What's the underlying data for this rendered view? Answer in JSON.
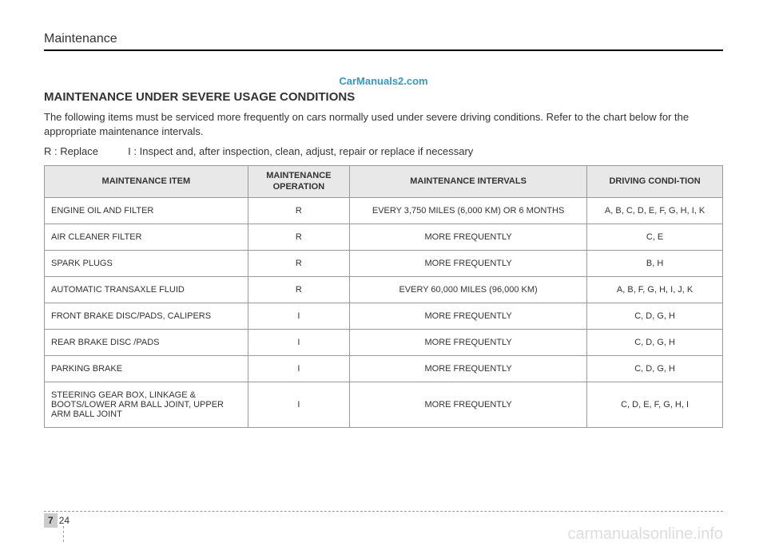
{
  "header": {
    "section": "Maintenance"
  },
  "watermark_top": "CarManuals2.com",
  "title": "MAINTENANCE UNDER SEVERE USAGE CONDITIONS",
  "intro": "The following items must be serviced more frequently on cars normally used under severe driving conditions. Refer to the chart below for the appropriate maintenance intervals.",
  "legend": {
    "r": "R : Replace",
    "i": "I : Inspect and, after inspection, clean, adjust, repair or replace if necessary"
  },
  "table": {
    "columns": [
      "MAINTENANCE ITEM",
      "MAINTENANCE OPERATION",
      "MAINTENANCE INTERVALS",
      "DRIVING CONDI-TION"
    ],
    "col_widths": [
      "30%",
      "15%",
      "35%",
      "20%"
    ],
    "header_bg": "#e8e8e8",
    "border_color": "#999999",
    "font_size": 11,
    "rows": [
      {
        "item": "ENGINE OIL AND FILTER",
        "op": "R",
        "interval": "EVERY 3,750 MILES (6,000 KM) OR 6 MONTHS",
        "cond": "A, B, C, D, E, F, G, H, I, K"
      },
      {
        "item": "AIR CLEANER FILTER",
        "op": "R",
        "interval": "MORE FREQUENTLY",
        "cond": "C, E"
      },
      {
        "item": "SPARK PLUGS",
        "op": "R",
        "interval": "MORE FREQUENTLY",
        "cond": "B, H"
      },
      {
        "item": "AUTOMATIC TRANSAXLE FLUID",
        "op": "R",
        "interval": "EVERY 60,000 MILES (96,000 KM)",
        "cond": "A, B, F, G, H, I, J, K"
      },
      {
        "item": "FRONT BRAKE DISC/PADS, CALIPERS",
        "op": "I",
        "interval": "MORE FREQUENTLY",
        "cond": "C, D, G, H"
      },
      {
        "item": "REAR BRAKE DISC /PADS",
        "op": "I",
        "interval": "MORE FREQUENTLY",
        "cond": "C, D, G, H"
      },
      {
        "item": "PARKING BRAKE",
        "op": "I",
        "interval": "MORE FREQUENTLY",
        "cond": "C, D, G, H"
      },
      {
        "item": "STEERING GEAR BOX, LINKAGE & BOOTS/LOWER ARM BALL JOINT, UPPER ARM BALL JOINT",
        "op": "I",
        "interval": "MORE FREQUENTLY",
        "cond": "C, D, E, F, G, H, I"
      }
    ]
  },
  "footer": {
    "section_num": "7",
    "page_num": "24"
  },
  "watermark_bottom": "carmanualsonline.info",
  "colors": {
    "watermark_top": "#3399cc",
    "watermark_bottom": "#dddddd",
    "text": "#333333",
    "border": "#000000"
  }
}
